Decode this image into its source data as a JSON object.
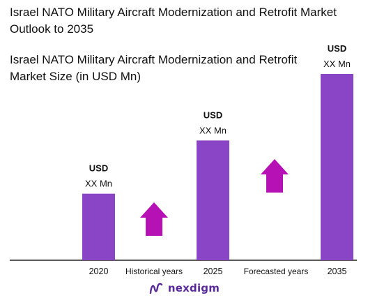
{
  "title": "Israel NATO Military Aircraft Modernization and Retrofit Market Outlook to 2035",
  "chart_data": {
    "type": "bar",
    "title": "Israel NATO Military Aircraft Modernization and Retrofit Market Size (in USD Mn)",
    "categories": [
      "2020",
      "2025",
      "2035"
    ],
    "values": [
      1,
      1.8,
      2.8
    ],
    "data_labels": [
      {
        "line1": "USD",
        "line2": "XX Mn"
      },
      {
        "line1": "USD",
        "line2": "XX Mn"
      },
      {
        "line1": "USD",
        "line2": "XX Mn"
      }
    ],
    "period_labels": [
      "Historical years",
      "Forecasted years"
    ],
    "ylim": [
      0,
      2.8
    ],
    "bar_color": "#8a44c6",
    "arrow_color": "#b511b5",
    "grid": false,
    "legend": "none"
  },
  "brand": {
    "name": "nexdigm",
    "color": "#5a2a9a"
  }
}
